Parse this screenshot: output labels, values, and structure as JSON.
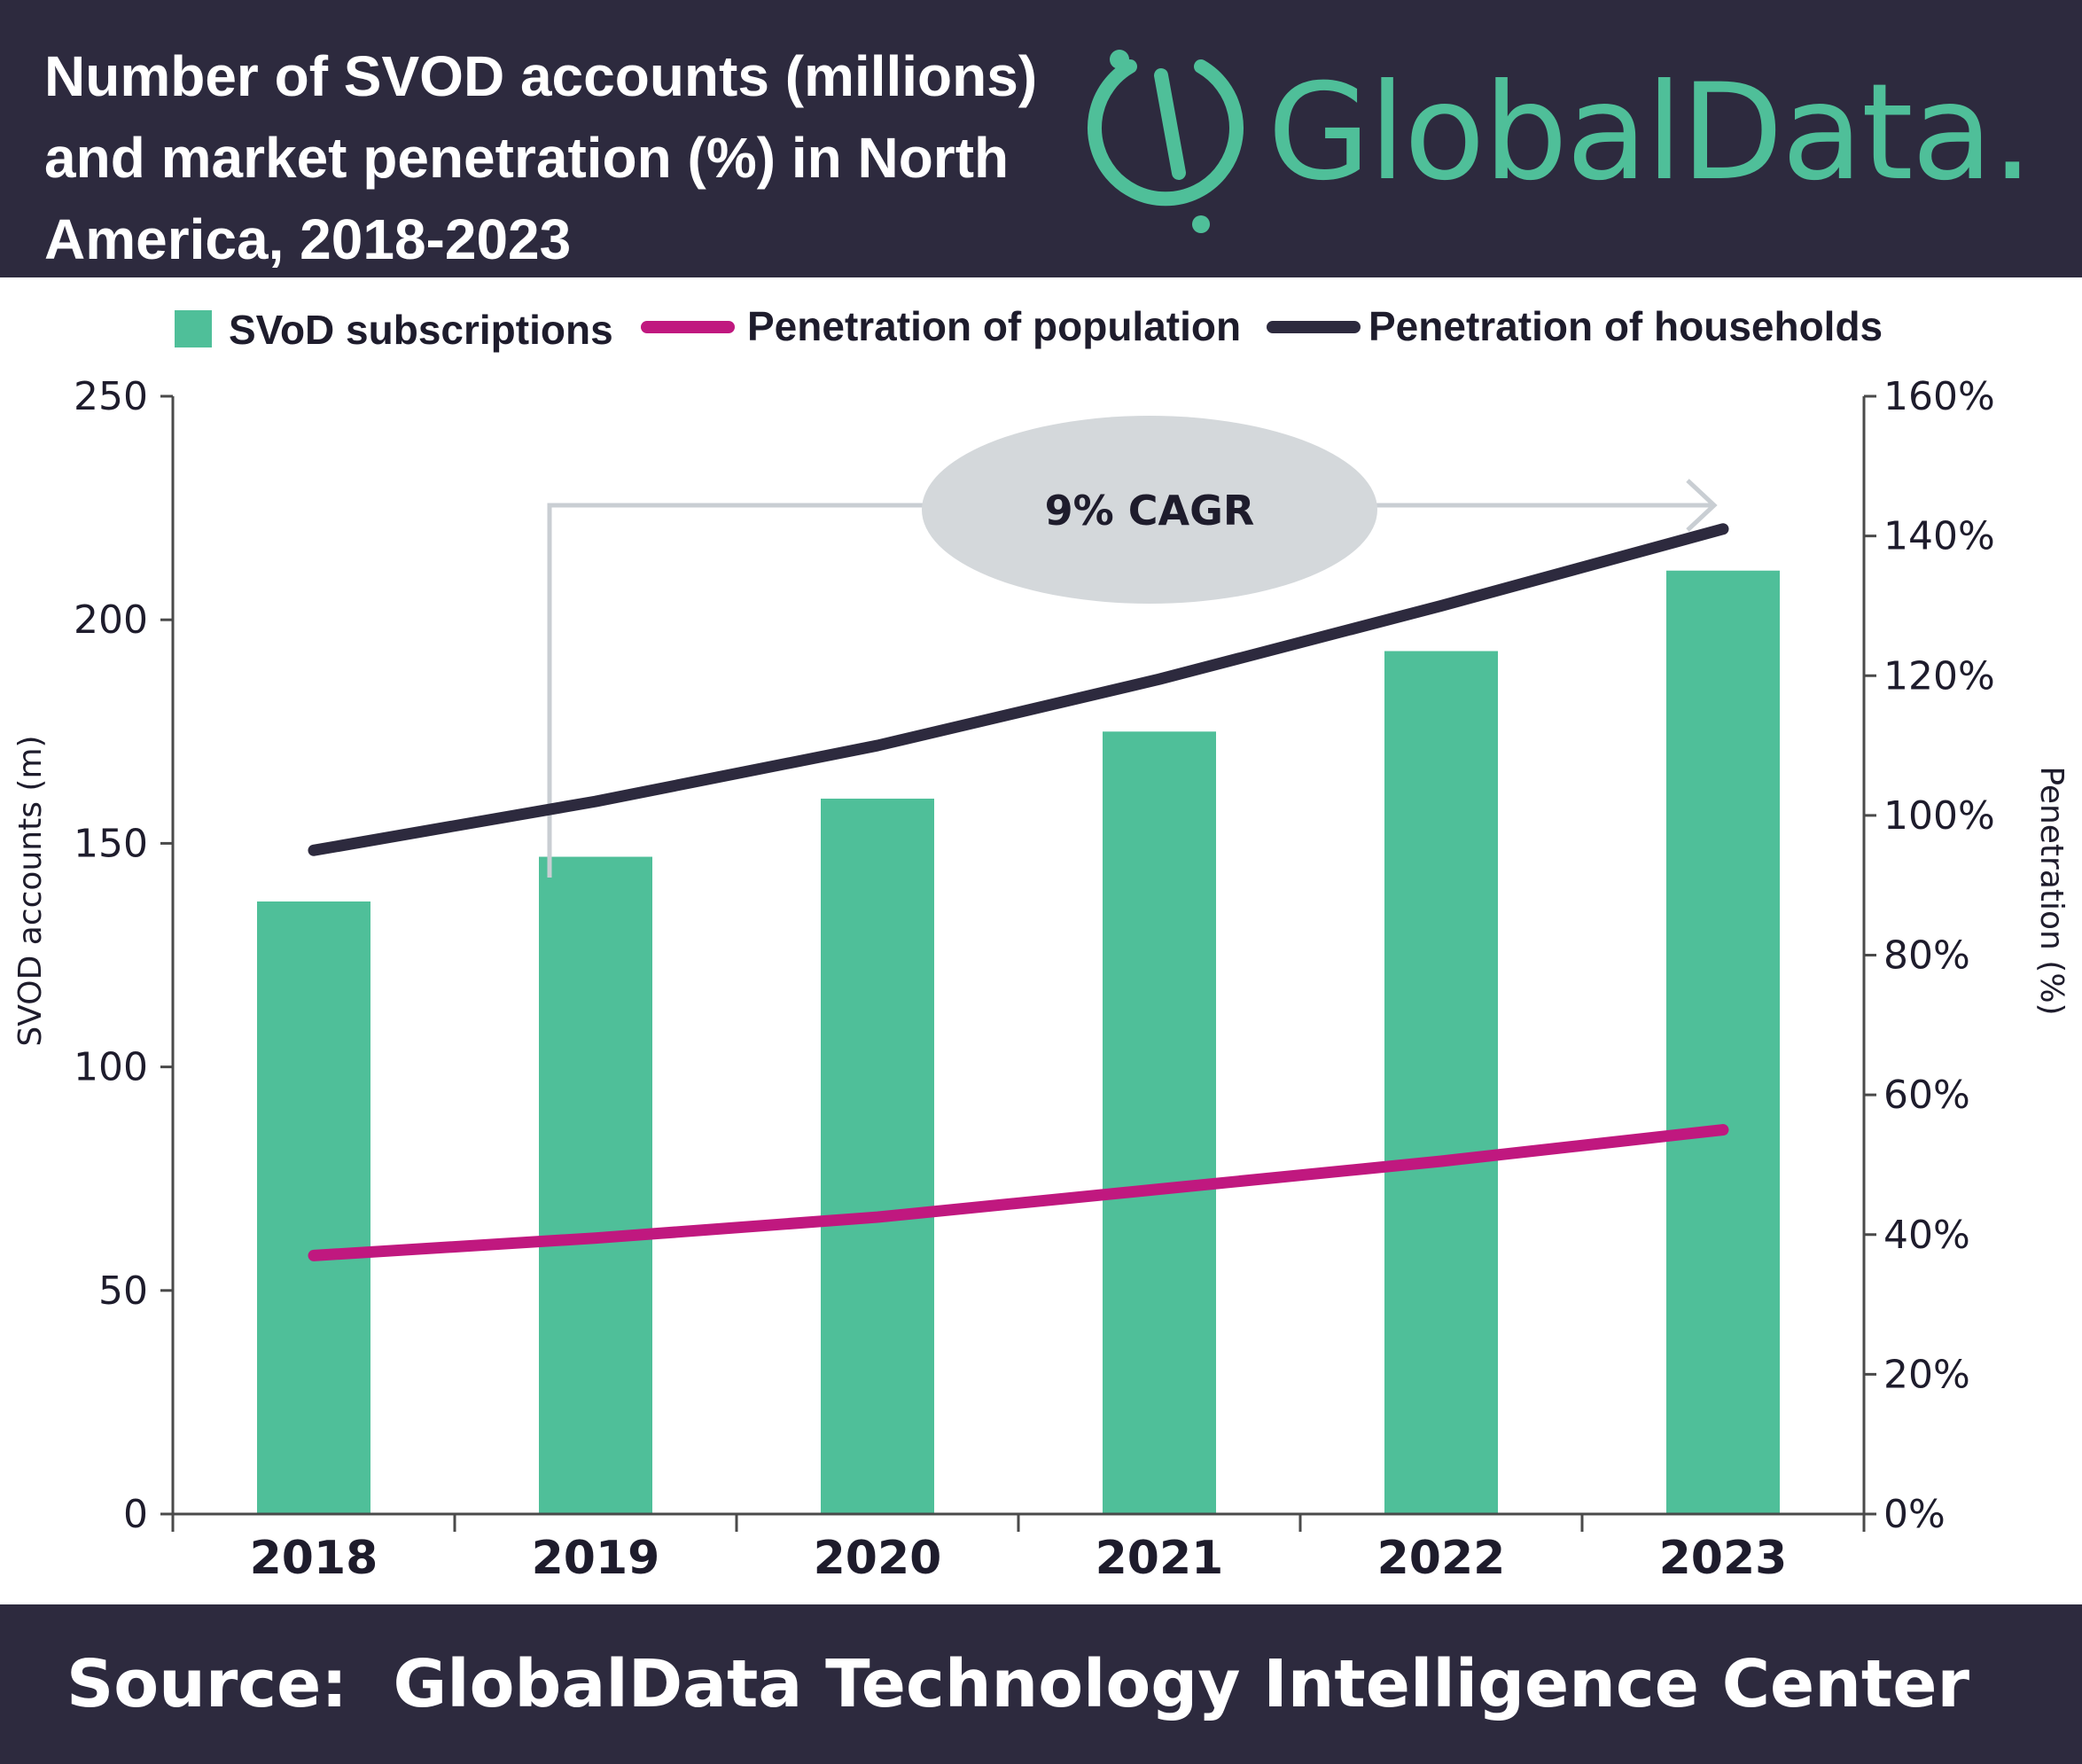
{
  "header": {
    "title": "Number of SVOD accounts (millions) and market penetration (%) in North America, 2018-2023",
    "logo_text": "GlobalData."
  },
  "footer": {
    "source": "Source:  GlobalData Technology Intelligence Center"
  },
  "colors": {
    "header_bg": "#2d2a3e",
    "bar": "#4fbf99",
    "population_line": "#c0187f",
    "households_line": "#2d2a3e",
    "annotation_fill": "#d4d8db",
    "annotation_arrow": "#c9ced3",
    "logo": "#4fbf99"
  },
  "icons": {
    "logo": "globaldata-logo-icon"
  },
  "chart_data": {
    "type": "bar",
    "title": "Number of SVOD accounts (millions) and market penetration (%) in North America, 2018-2023",
    "categories": [
      "2018",
      "2019",
      "2020",
      "2021",
      "2022",
      "2023"
    ],
    "series": [
      {
        "name": "SVoD subscriptions",
        "type": "bar",
        "axis": "left",
        "values": [
          137,
          147,
          160,
          175,
          193,
          211
        ]
      },
      {
        "name": "Penetration of population",
        "type": "line",
        "axis": "right",
        "values": [
          37,
          39.5,
          42.5,
          46.5,
          50.5,
          55
        ]
      },
      {
        "name": "Penetration of households",
        "type": "line",
        "axis": "right",
        "values": [
          95,
          102,
          110,
          119.5,
          130,
          141
        ]
      }
    ],
    "ylabel": "SVOD accounts (m)",
    "y2label": "Penetration (%)",
    "ylim": [
      0,
      250
    ],
    "y2lim": [
      0,
      160
    ],
    "yticks": [
      "0",
      "50",
      "100",
      "150",
      "200",
      "250"
    ],
    "y2ticks": [
      "0%",
      "20%",
      "40%",
      "60%",
      "80%",
      "100%",
      "120%",
      "140%",
      "160%"
    ],
    "legend": [
      "SVoD subscriptions",
      "Penetration of population",
      "Penetration of households"
    ],
    "legend_position": "top",
    "annotation": {
      "text": "9% CAGR",
      "from": "2019",
      "to": "2023"
    },
    "grid": false
  }
}
